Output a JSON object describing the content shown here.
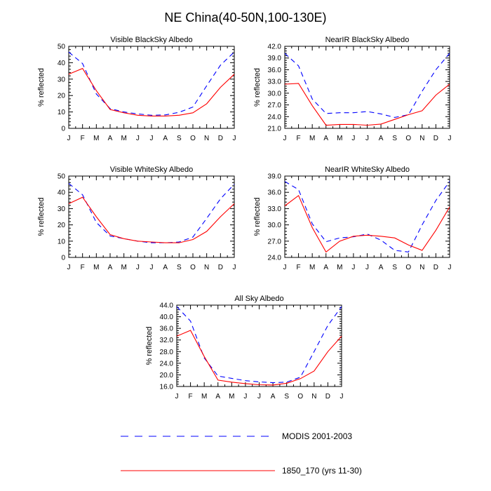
{
  "figure_title": "NE China(40-50N,100-130E)",
  "months": [
    "J",
    "F",
    "M",
    "A",
    "M",
    "J",
    "J",
    "A",
    "S",
    "O",
    "N",
    "D",
    "J"
  ],
  "legend": [
    {
      "label": "MODIS 2001-2003",
      "color": "#0000ff",
      "dash": true
    },
    {
      "label": "1850_170 (yrs 11-30)",
      "color": "#ff0000",
      "dash": false
    }
  ],
  "chart_data": [
    {
      "type": "line",
      "title": "Visible BlackSky Albedo",
      "ylabel": "% reflected",
      "ylim": [
        0,
        50
      ],
      "yticks": [
        "0",
        "10",
        "20",
        "30",
        "40",
        "50"
      ],
      "yticks_values": [
        0,
        10,
        20,
        30,
        40,
        50
      ],
      "categories": [
        "J",
        "F",
        "M",
        "A",
        "M",
        "J",
        "J",
        "A",
        "S",
        "O",
        "N",
        "D",
        "J"
      ],
      "series": [
        {
          "name": "MODIS 2001-2003",
          "values": [
            46.5,
            39.5,
            21,
            12,
            10,
            8.8,
            8,
            8.2,
            9.8,
            13,
            26,
            38.5,
            46.5
          ]
        },
        {
          "name": "1850_170 (yrs 11-30)",
          "values": [
            33,
            36.5,
            23,
            11.5,
            9.5,
            8,
            7.5,
            7.5,
            8,
            9.5,
            15,
            25,
            33
          ]
        }
      ]
    },
    {
      "type": "line",
      "title": "NearIR BlackSky Albedo",
      "ylabel": "% reflected",
      "ylim": [
        21,
        42
      ],
      "yticks": [
        "21.0",
        "24.0",
        "27.0",
        "30.0",
        "33.0",
        "36.0",
        "39.0",
        "42.0"
      ],
      "yticks_values": [
        21,
        24,
        27,
        30,
        33,
        36,
        39,
        42
      ],
      "categories": [
        "J",
        "F",
        "M",
        "A",
        "M",
        "J",
        "J",
        "A",
        "S",
        "O",
        "N",
        "D",
        "J"
      ],
      "series": [
        {
          "name": "MODIS 2001-2003",
          "values": [
            40.2,
            37,
            28.5,
            24.8,
            25,
            25,
            25.3,
            24.7,
            23.8,
            24.5,
            30.5,
            36,
            40.2
          ]
        },
        {
          "name": "1850_170 (yrs 11-30)",
          "values": [
            32.3,
            32.5,
            26.8,
            21.8,
            22,
            22,
            21.8,
            22.1,
            23.3,
            24.5,
            25.5,
            29.5,
            32.3
          ]
        }
      ]
    },
    {
      "type": "line",
      "title": "Visible WhiteSky Albedo",
      "ylabel": "% reflected",
      "ylim": [
        0,
        50
      ],
      "yticks": [
        "0",
        "10",
        "20",
        "30",
        "40",
        "50"
      ],
      "yticks_values": [
        0,
        10,
        20,
        30,
        40,
        50
      ],
      "categories": [
        "J",
        "F",
        "M",
        "A",
        "M",
        "J",
        "J",
        "A",
        "S",
        "O",
        "N",
        "D",
        "J"
      ],
      "series": [
        {
          "name": "MODIS 2001-2003",
          "values": [
            45.5,
            38.5,
            21.5,
            13.2,
            11.5,
            10,
            9,
            9,
            9.5,
            12.5,
            24,
            36,
            45
          ]
        },
        {
          "name": "1850_170 (yrs 11-30)",
          "values": [
            33,
            37,
            25,
            14,
            11.5,
            10,
            9.5,
            9,
            9,
            11,
            16,
            25,
            33
          ]
        }
      ]
    },
    {
      "type": "line",
      "title": "NearIR WhiteSky Albedo",
      "ylabel": "% reflected",
      "ylim": [
        24,
        39
      ],
      "yticks": [
        "24.0",
        "27.0",
        "30.0",
        "33.0",
        "36.0",
        "39.0"
      ],
      "yticks_values": [
        24,
        27,
        30,
        33,
        36,
        39
      ],
      "categories": [
        "J",
        "F",
        "M",
        "A",
        "M",
        "J",
        "J",
        "A",
        "S",
        "O",
        "N",
        "D",
        "J"
      ],
      "series": [
        {
          "name": "MODIS 2001-2003",
          "values": [
            38,
            36.5,
            30.2,
            26.9,
            27.6,
            27.8,
            28.3,
            27.2,
            25.3,
            25.0,
            30,
            34.5,
            38
          ]
        },
        {
          "name": "1850_170 (yrs 11-30)",
          "values": [
            33.5,
            35.4,
            29.5,
            25.0,
            27,
            27.9,
            28.1,
            27.9,
            27.6,
            26.3,
            25.3,
            29,
            33.3
          ]
        }
      ]
    },
    {
      "type": "line",
      "title": "All Sky Albedo",
      "ylabel": "% reflected",
      "ylim": [
        16,
        44
      ],
      "yticks": [
        "16.0",
        "20.0",
        "24.0",
        "28.0",
        "32.0",
        "36.0",
        "40.0",
        "44.0"
      ],
      "yticks_values": [
        16,
        20,
        24,
        28,
        32,
        36,
        40,
        44
      ],
      "categories": [
        "J",
        "F",
        "M",
        "A",
        "M",
        "J",
        "J",
        "A",
        "S",
        "O",
        "N",
        "D",
        "J"
      ],
      "series": [
        {
          "name": "MODIS 2001-2003",
          "values": [
            43.5,
            38.5,
            25.8,
            19.6,
            18.8,
            18,
            17.6,
            17.3,
            17.5,
            19.2,
            28,
            37,
            43.5
          ]
        },
        {
          "name": "1850_170 (yrs 11-30)",
          "values": [
            33.3,
            35.3,
            26.3,
            18.2,
            17.5,
            17,
            16.6,
            16.5,
            17.1,
            18.7,
            21.3,
            28,
            33.3
          ]
        }
      ]
    }
  ]
}
